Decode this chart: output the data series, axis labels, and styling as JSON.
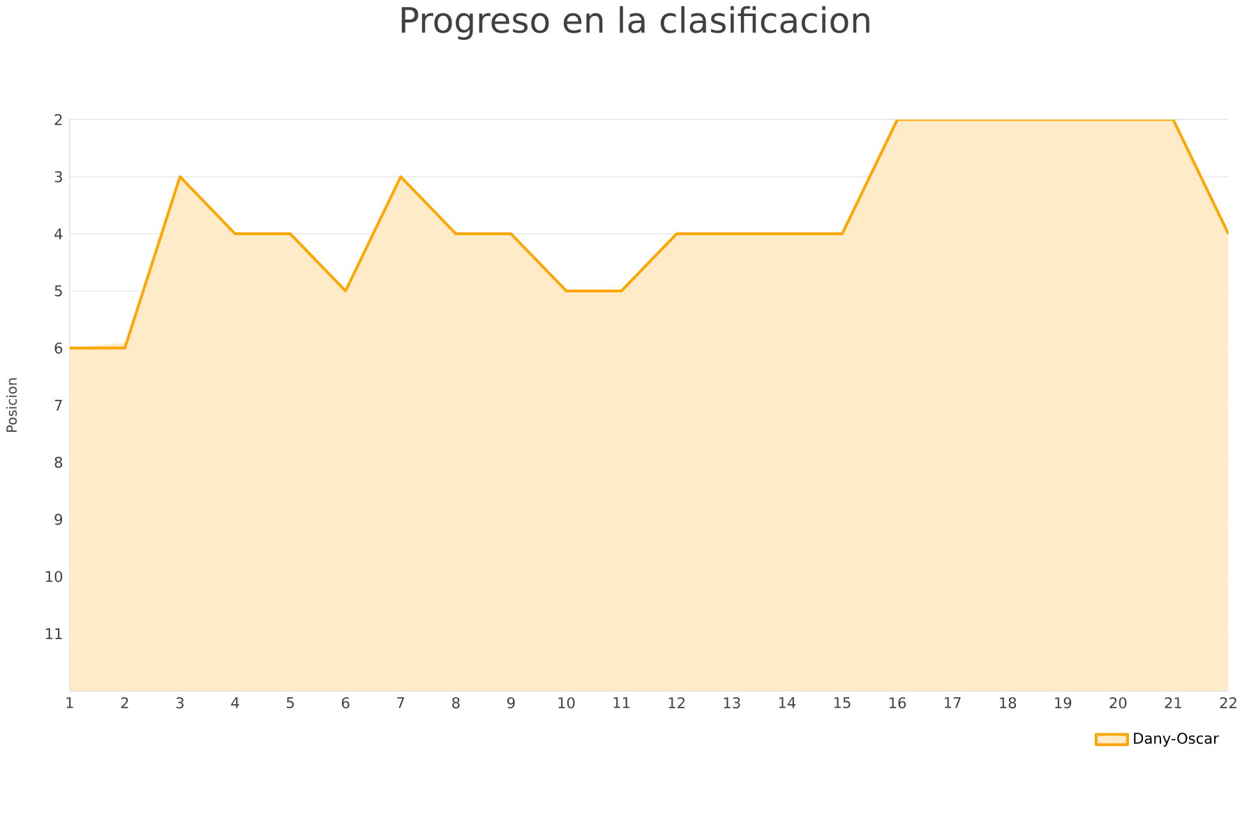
{
  "chart_data": {
    "type": "area",
    "title": "Progreso en la clasificacion",
    "ylabel": "Posicion",
    "x": [
      1,
      2,
      3,
      4,
      5,
      6,
      7,
      8,
      9,
      10,
      11,
      12,
      13,
      14,
      15,
      16,
      17,
      18,
      19,
      20,
      21,
      22
    ],
    "series": [
      {
        "name": "Dany-Oscar",
        "color": "#ffa500",
        "values": [
          6,
          6,
          3,
          4,
          4,
          5,
          3,
          4,
          4,
          5,
          5,
          4,
          4,
          4,
          4,
          2,
          2,
          2,
          2,
          2,
          2,
          4
        ]
      }
    ],
    "xlim": [
      1,
      22
    ],
    "xticks": [
      1,
      2,
      3,
      4,
      5,
      6,
      7,
      8,
      9,
      10,
      11,
      12,
      13,
      14,
      15,
      16,
      17,
      18,
      19,
      20,
      21,
      22
    ],
    "ylim": [
      12,
      2
    ],
    "yticks": [
      2,
      3,
      4,
      5,
      6,
      7,
      8,
      9,
      10,
      11,
      {
        "value": 12,
        "label": null
      }
    ],
    "grid": "y",
    "legend": "bottom right",
    "marker": "none",
    "line_style": "solid"
  }
}
